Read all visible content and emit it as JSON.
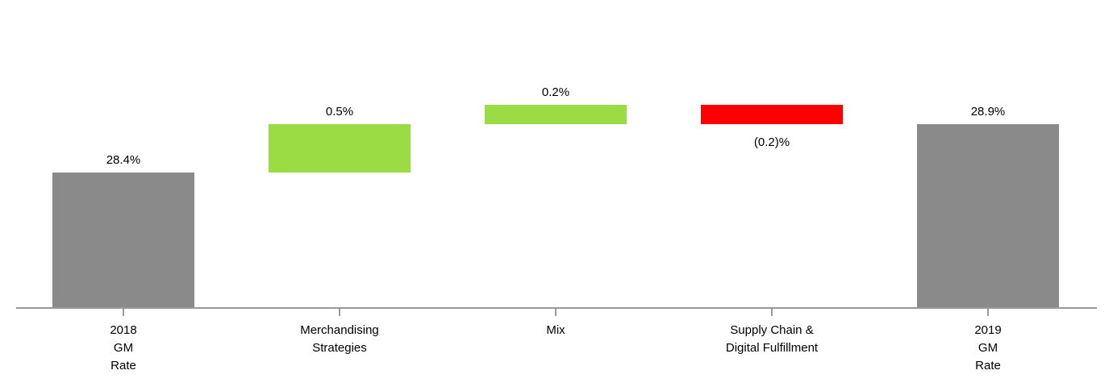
{
  "chart_data": {
    "type": "waterfall",
    "categories": [
      "2018\nGM\nRate",
      "Merchandising\nStrategies",
      "Mix",
      "Supply Chain &\nDigital Fulfillment",
      "2019\nGM\nRate"
    ],
    "values": [
      28.4,
      0.5,
      0.2,
      -0.2,
      28.9
    ],
    "value_labels": [
      "28.4%",
      "0.5%",
      "0.2%",
      "(0.2)%",
      "28.9%"
    ],
    "measure": [
      "absolute",
      "relative",
      "relative",
      "relative",
      "total"
    ],
    "colors": [
      "#8a8a8a",
      "#9bdc45",
      "#9bdc45",
      "#ff0000",
      "#8a8a8a"
    ],
    "ylim": [
      27,
      29.5
    ]
  }
}
